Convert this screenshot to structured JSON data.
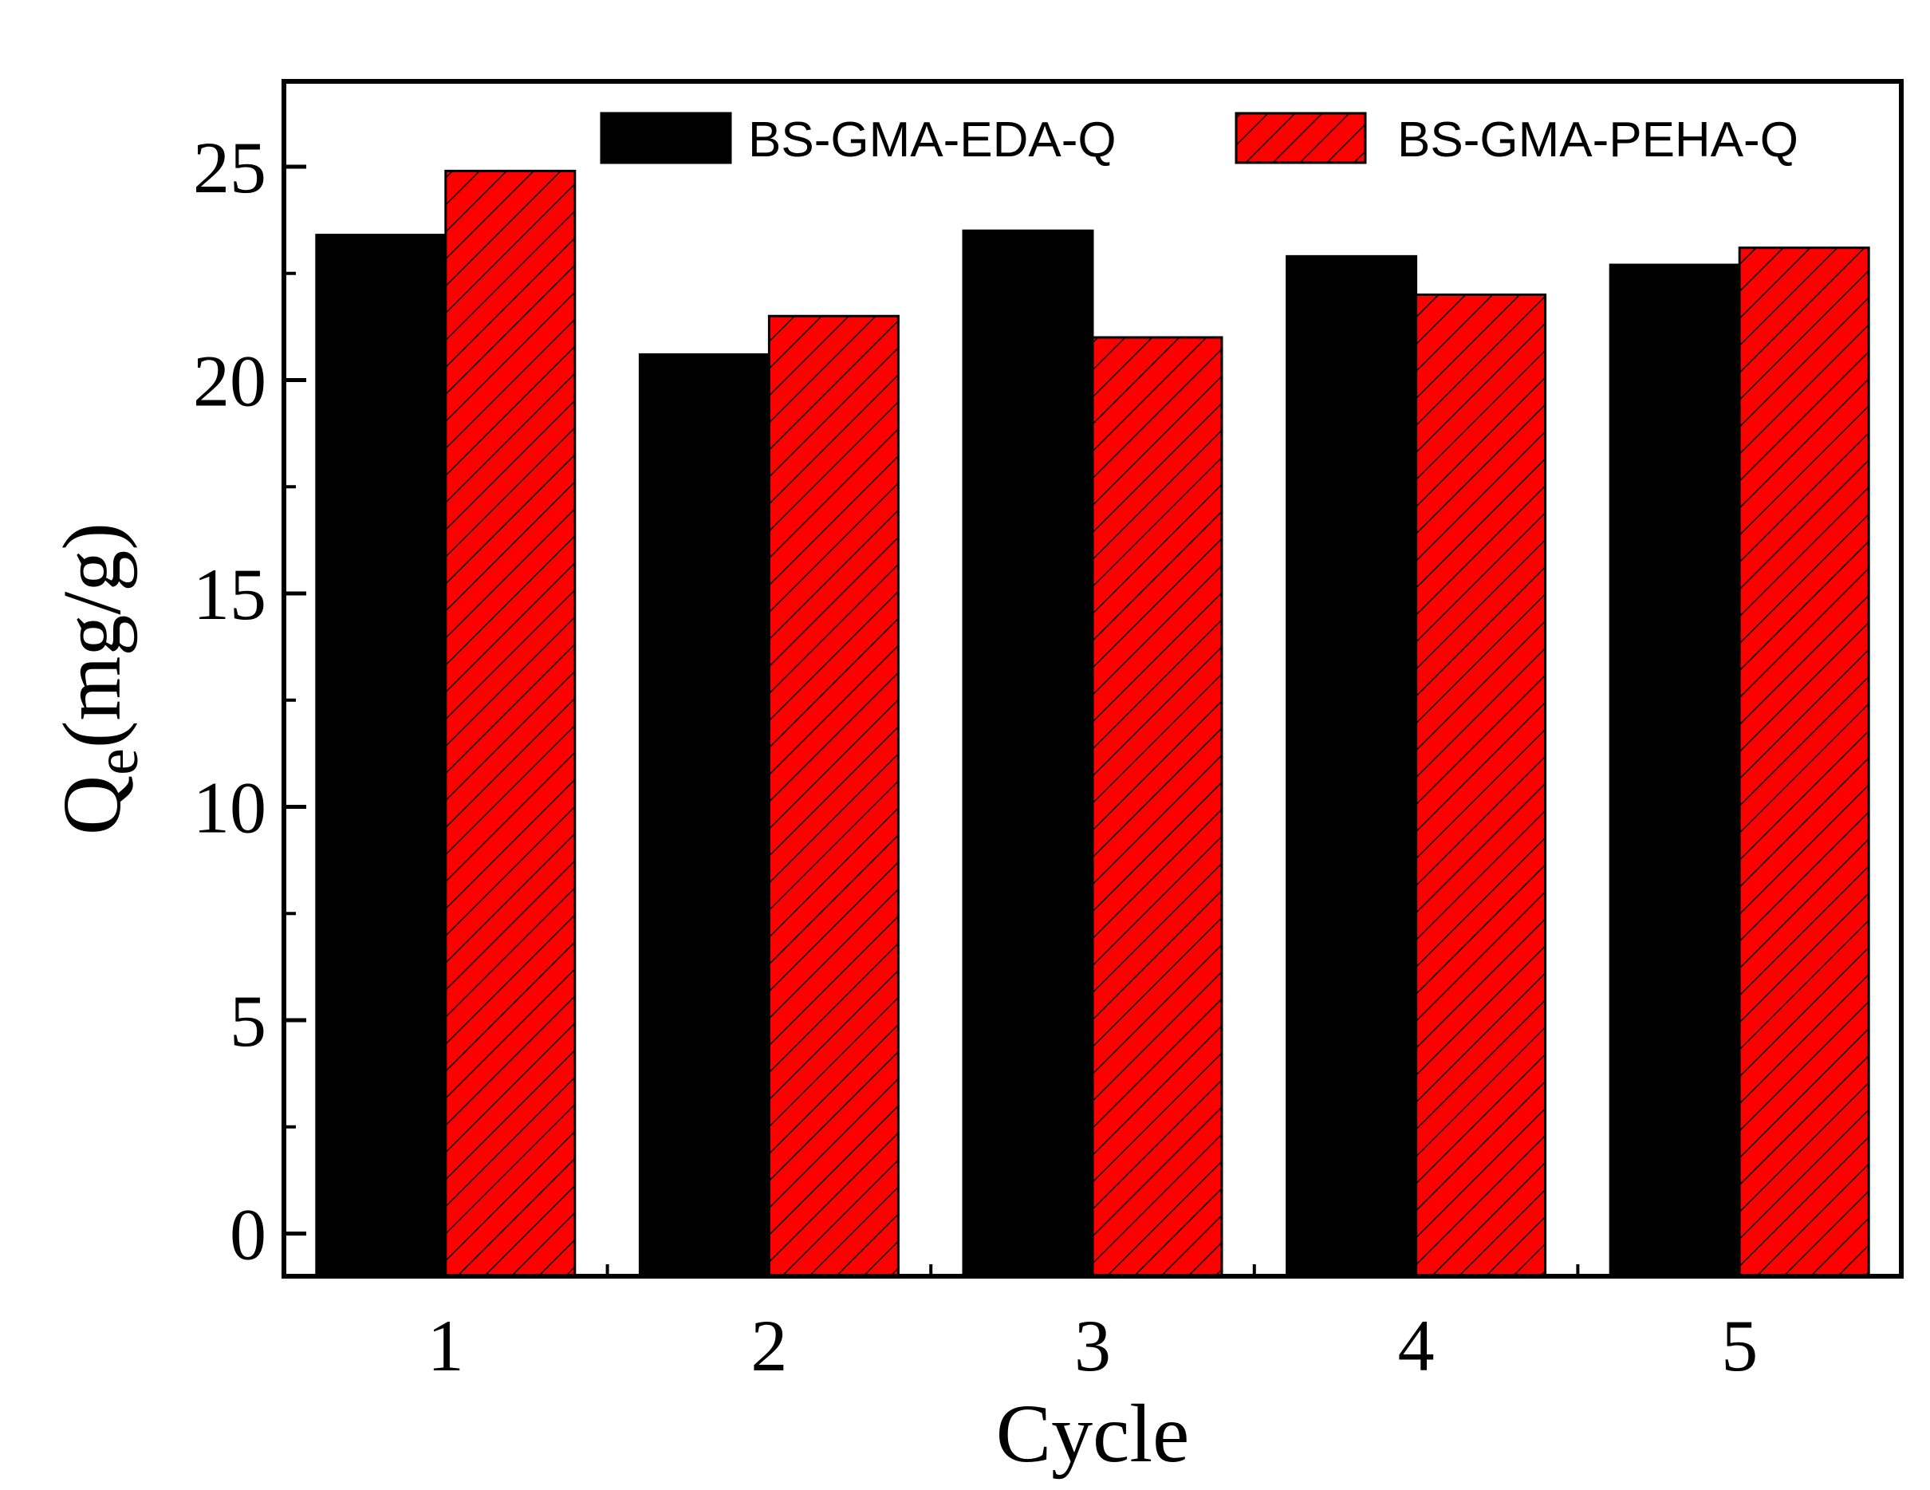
{
  "chart_data": {
    "type": "bar",
    "title": "",
    "xlabel": "Cycle",
    "ylabel": "Q",
    "ylabel_sub": "e",
    "ylabel_tail": "(mg/g)",
    "categories": [
      "1",
      "2",
      "3",
      "4",
      "5"
    ],
    "series": [
      {
        "name": "BS-GMA-EDA-Q",
        "color": "#000000",
        "pattern": "solid",
        "values": [
          23.4,
          20.6,
          23.5,
          22.9,
          22.7
        ]
      },
      {
        "name": "BS-GMA-PEHA-Q",
        "color": "#ff0000",
        "pattern": "hatched",
        "values": [
          24.9,
          21.5,
          21.0,
          22.0,
          23.1
        ]
      }
    ],
    "ylim": [
      -1,
      27
    ],
    "yticks": [
      0,
      5,
      10,
      15,
      20,
      25
    ],
    "grid": false,
    "legend_position": "top"
  }
}
